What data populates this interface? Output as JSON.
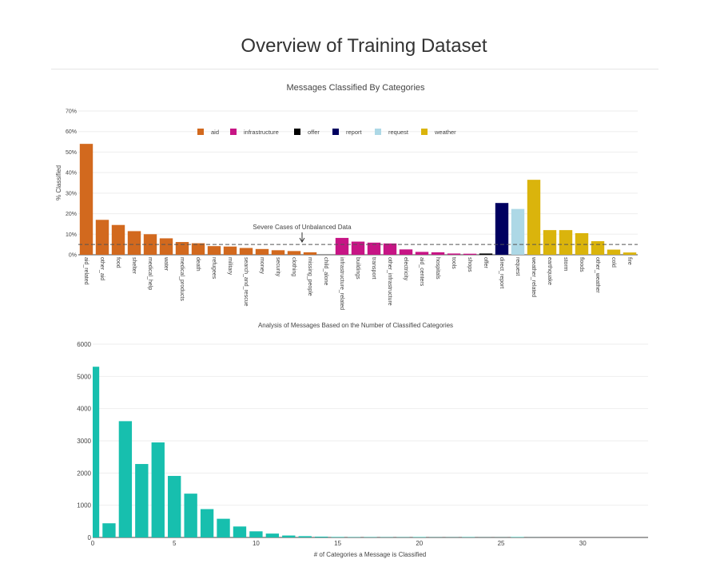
{
  "page": {
    "title": "Overview of Training Dataset"
  },
  "chart_data": [
    {
      "type": "bar",
      "title": "Messages Classified By Categories",
      "xlabel": "",
      "ylabel": "% Classified",
      "ylim": [
        0,
        70
      ],
      "yticks": [
        0,
        10,
        20,
        30,
        40,
        50,
        60,
        70
      ],
      "ytick_suffix": "%",
      "grid": true,
      "legend_position": "top-center",
      "legend": [
        {
          "name": "aid",
          "color": "#d2691e"
        },
        {
          "name": "infrastructure",
          "color": "#c71585"
        },
        {
          "name": "offer",
          "color": "#000000"
        },
        {
          "name": "report",
          "color": "#000060"
        },
        {
          "name": "request",
          "color": "#add8e6"
        },
        {
          "name": "weather",
          "color": "#dab40c"
        }
      ],
      "categories": [
        "aid_related",
        "other_aid",
        "food",
        "shelter",
        "medical_help",
        "water",
        "medical_products",
        "death",
        "refugees",
        "military",
        "search_and_rescue",
        "money",
        "security",
        "clothing",
        "missing_people",
        "child_alone",
        "infrastructure_related",
        "buildings",
        "transport",
        "other_infrastructure",
        "electricity",
        "aid_centers",
        "hospitals",
        "tools",
        "shops",
        "offer",
        "direct_report",
        "request",
        "weather_related",
        "earthquake",
        "storm",
        "floods",
        "other_weather",
        "cold",
        "fire"
      ],
      "groups": [
        "aid",
        "aid",
        "aid",
        "aid",
        "aid",
        "aid",
        "aid",
        "aid",
        "aid",
        "aid",
        "aid",
        "aid",
        "aid",
        "aid",
        "aid",
        "aid",
        "infrastructure",
        "infrastructure",
        "infrastructure",
        "infrastructure",
        "infrastructure",
        "infrastructure",
        "infrastructure",
        "infrastructure",
        "infrastructure",
        "offer",
        "report",
        "request",
        "weather",
        "weather",
        "weather",
        "weather",
        "weather",
        "weather",
        "weather"
      ],
      "values": [
        54,
        17,
        14.5,
        11.5,
        10,
        8,
        6.2,
        5.6,
        4.2,
        4,
        3.3,
        2.8,
        2.2,
        1.8,
        1.2,
        0,
        8.2,
        6.4,
        5.9,
        5.5,
        2.6,
        1.4,
        1.2,
        0.6,
        0.5,
        0.6,
        25.2,
        22.3,
        36.5,
        12,
        12,
        10.5,
        6.6,
        2.5,
        1.1
      ],
      "reference_line": {
        "value": 5,
        "label": "Severe Cases of Unbalanced Data",
        "style": "dashed"
      }
    },
    {
      "type": "bar",
      "title": "Analysis of Messages Based on the Number of Classified Categories",
      "xlabel": "# of Categories a Message is Classified",
      "ylabel": "",
      "xlim": [
        0,
        34
      ],
      "ylim": [
        0,
        6000
      ],
      "xticks": [
        0,
        5,
        10,
        15,
        20,
        25,
        30
      ],
      "yticks": [
        0,
        1000,
        2000,
        3000,
        4000,
        5000,
        6000
      ],
      "grid": true,
      "color": "#17bfae",
      "x": [
        0,
        1,
        2,
        3,
        4,
        5,
        6,
        7,
        8,
        9,
        10,
        11,
        12,
        13,
        14,
        15,
        16,
        17,
        18,
        19,
        20,
        21,
        22,
        23,
        24,
        25,
        26,
        27
      ],
      "values": [
        5300,
        440,
        3610,
        2280,
        2950,
        1910,
        1360,
        880,
        580,
        340,
        190,
        120,
        60,
        40,
        25,
        15,
        10,
        10,
        8,
        8,
        12,
        5,
        5,
        10,
        3,
        3,
        12,
        2
      ]
    }
  ]
}
